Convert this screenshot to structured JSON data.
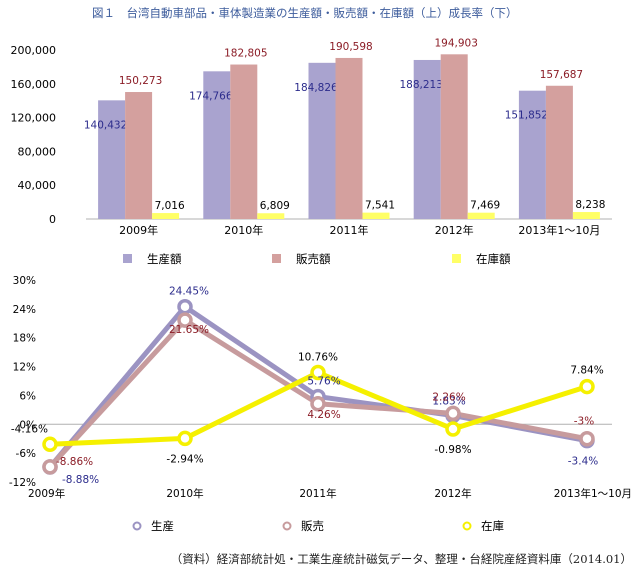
{
  "title": "図１　台湾自動車部品・車体製造業の生産額・販売額・在庫額（上）成長率（下）",
  "source": "（資料）経済部統計処・工業生産統計磁気データ、整理・台経院産経資料庫（2014.01）",
  "colors": {
    "production": "#a9a3cf",
    "sales": "#d4a09e",
    "inventory": "#ffff66",
    "production_line": "#9b93c2",
    "sales_line": "#c79b9d",
    "inventory_line": "#f5f000",
    "production_label": "#2c2c8c",
    "sales_label": "#8b1c26",
    "inventory_label": "#000000",
    "title": "#3d5c9c"
  },
  "chart_data": [
    {
      "type": "bar",
      "categories": [
        "2009年",
        "2010年",
        "2011年",
        "2012年",
        "2013年1～10月"
      ],
      "series": [
        {
          "name": "生産額",
          "values": [
            140432,
            174766,
            184826,
            188213,
            151852
          ],
          "labels": [
            "140,432",
            "174,766",
            "184,826",
            "188,213",
            "151,852"
          ]
        },
        {
          "name": "販売額",
          "values": [
            150273,
            182805,
            190598,
            194903,
            157687
          ],
          "labels": [
            "150,273",
            "182,805",
            "190,598",
            "194,903",
            "157,687"
          ]
        },
        {
          "name": "在庫額",
          "values": [
            7016,
            6809,
            7541,
            7469,
            8238
          ],
          "labels": [
            "7,016",
            "6,809",
            "7,541",
            "7,469",
            "8,238"
          ]
        }
      ],
      "ylim": [
        0,
        200000
      ],
      "yticks": [
        0,
        40000,
        80000,
        120000,
        160000,
        200000
      ],
      "ytick_labels": [
        "0",
        "40,000",
        "80,000",
        "120,000",
        "160,000",
        "200,000"
      ],
      "legend_placement": "bottom",
      "grid": false
    },
    {
      "type": "line",
      "categories": [
        "2009年",
        "2010年",
        "2011年",
        "2012年",
        "2013年1～10月"
      ],
      "series": [
        {
          "name": "生産",
          "values": [
            -8.88,
            24.45,
            5.76,
            1.83,
            -3.4
          ],
          "labels": [
            "-8.88%",
            "24.45%",
            "5.76%",
            "1.83%",
            "-3.4%"
          ]
        },
        {
          "name": "販売",
          "values": [
            -8.86,
            21.65,
            4.26,
            2.26,
            -3.0
          ],
          "labels": [
            "-8.86%",
            "21.65%",
            "4.26%",
            "2.26%",
            "-3%"
          ]
        },
        {
          "name": "在庫",
          "values": [
            -4.16,
            -2.94,
            10.76,
            -0.98,
            7.84
          ],
          "labels": [
            "-4.16%",
            "-2.94%",
            "10.76%",
            "-0.98%",
            "7.84%"
          ]
        }
      ],
      "ylim": [
        -12,
        30
      ],
      "yticks": [
        -12,
        -6,
        0,
        6,
        12,
        18,
        24,
        30
      ],
      "ytick_labels": [
        "-12%",
        "-6%",
        "0%",
        "6%",
        "12%",
        "18%",
        "24%",
        "30%"
      ],
      "legend_placement": "bottom",
      "grid": false
    }
  ]
}
